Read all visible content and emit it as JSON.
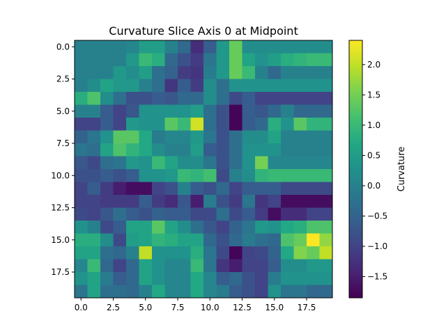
{
  "chart_data": {
    "type": "heatmap",
    "title": "Curvature Slice Axis 0 at Midpoint",
    "xlabel": "",
    "ylabel": "",
    "xlim": [
      -0.5,
      19.5
    ],
    "ylim": [
      19.5,
      -0.5
    ],
    "x_ticks": [
      0.0,
      2.5,
      5.0,
      7.5,
      10.0,
      12.5,
      15.0,
      17.5
    ],
    "y_ticks": [
      0.0,
      2.5,
      5.0,
      7.5,
      10.0,
      12.5,
      15.0,
      17.5
    ],
    "colorbar": {
      "label": "Curvature",
      "range": [
        -1.85,
        2.4
      ],
      "ticks": [
        -1.5,
        -1.0,
        -0.5,
        0.0,
        0.5,
        1.0,
        1.5,
        2.0
      ],
      "colormap": "viridis"
    },
    "grid": false,
    "values": [
      [
        0.0,
        0.0,
        0.0,
        0.0,
        0.1,
        0.5,
        0.5,
        0.0,
        -0.4,
        -1.3,
        -0.6,
        0.4,
        1.4,
        0.2,
        0.2,
        0.2,
        0.2,
        0.2,
        0.2,
        0.2
      ],
      [
        0.0,
        0.0,
        0.0,
        0.0,
        0.4,
        1.0,
        0.8,
        -0.4,
        -0.8,
        -1.1,
        -0.2,
        0.4,
        1.4,
        0.6,
        0.3,
        0.5,
        0.8,
        0.9,
        1.0,
        1.0
      ],
      [
        0.0,
        0.0,
        0.0,
        0.4,
        0.2,
        0.5,
        -0.3,
        -0.5,
        -1.1,
        -1.2,
        -0.1,
        0.4,
        1.4,
        1.0,
        0.0,
        -0.4,
        0.0,
        0.0,
        0.0,
        0.0
      ],
      [
        0.0,
        0.2,
        0.6,
        0.4,
        0.4,
        0.0,
        -0.3,
        -1.2,
        -0.6,
        -1.1,
        0.2,
        -0.3,
        0.3,
        0.3,
        0.3,
        0.3,
        0.3,
        0.3,
        0.3,
        0.3
      ],
      [
        0.8,
        1.2,
        0.2,
        -0.3,
        -0.8,
        -0.8,
        -0.6,
        -0.7,
        -0.4,
        -0.4,
        0.2,
        -0.3,
        -0.9,
        -0.6,
        -1.0,
        -1.0,
        -1.0,
        -1.0,
        -1.0,
        -1.0
      ],
      [
        0.0,
        0.0,
        -0.6,
        -1.0,
        -0.7,
        0.3,
        0.3,
        0.3,
        0.3,
        0.5,
        -0.3,
        -0.8,
        -1.8,
        -0.6,
        -0.7,
        -0.4,
        0.0,
        -0.4,
        -0.4,
        -0.4
      ],
      [
        -1.0,
        -1.0,
        -0.6,
        -1.0,
        0.4,
        0.3,
        0.3,
        1.3,
        1.0,
        2.1,
        -0.3,
        -0.8,
        -1.8,
        -0.6,
        -0.4,
        0.8,
        0.3,
        1.3,
        0.9,
        0.9
      ],
      [
        -0.5,
        -0.2,
        0.3,
        1.3,
        1.3,
        0.7,
        -0.1,
        0.1,
        0.1,
        0.4,
        -0.2,
        -0.8,
        -0.3,
        0.2,
        0.2,
        0.6,
        0.0,
        0.0,
        0.0,
        0.0
      ],
      [
        -0.2,
        -0.3,
        0.6,
        1.2,
        0.9,
        0.7,
        0.2,
        0.0,
        0.0,
        0.5,
        -0.6,
        -0.8,
        -0.3,
        0.3,
        0.3,
        0.3,
        0.0,
        0.0,
        0.0,
        0.0
      ],
      [
        -0.7,
        -0.9,
        -0.3,
        -0.2,
        0.4,
        0.3,
        1.0,
        0.6,
        0.2,
        0.2,
        -0.2,
        -0.8,
        -0.3,
        0.3,
        1.5,
        0.1,
        0.1,
        0.1,
        0.1,
        0.1
      ],
      [
        -0.8,
        -0.8,
        -0.6,
        -0.8,
        -0.6,
        0.3,
        0.3,
        0.4,
        1.0,
        0.9,
        1.1,
        -0.9,
        0.0,
        0.2,
        0.9,
        1.0,
        1.0,
        1.0,
        1.0,
        1.0
      ],
      [
        -1.0,
        -0.6,
        -1.1,
        -1.5,
        -1.7,
        -1.7,
        -1.0,
        -0.8,
        0.0,
        -0.6,
        -0.8,
        -0.4,
        -1.0,
        -0.6,
        -0.6,
        -0.6,
        -0.9,
        -0.9,
        -0.9,
        -0.9
      ],
      [
        -1.0,
        -1.0,
        -1.1,
        -1.1,
        -1.1,
        -0.6,
        -1.1,
        -1.3,
        -0.7,
        -1.5,
        -0.1,
        -0.8,
        -1.1,
        -0.2,
        -1.2,
        -1.0,
        -1.7,
        -1.7,
        -1.7,
        -1.7
      ],
      [
        -0.9,
        -1.0,
        -0.7,
        -0.3,
        -0.6,
        -0.8,
        -0.5,
        -0.6,
        -0.6,
        -0.9,
        -0.9,
        -0.3,
        -0.9,
        -0.6,
        -1.1,
        -1.7,
        -1.3,
        -1.3,
        -1.0,
        -1.0
      ],
      [
        0.3,
        0.0,
        -0.9,
        -0.6,
        0.6,
        0.6,
        1.3,
        0.6,
        0.2,
        -0.3,
        -0.7,
        -1.0,
        -0.5,
        -0.2,
        0.4,
        0.3,
        0.7,
        0.8,
        1.2,
        1.2
      ],
      [
        0.8,
        0.8,
        0.2,
        -0.9,
        0.5,
        0.6,
        0.9,
        0.8,
        0.6,
        0.6,
        -0.4,
        -0.8,
        -0.4,
        -0.1,
        -0.3,
        -0.4,
        1.2,
        1.4,
        2.4,
        1.7
      ],
      [
        0.6,
        0.6,
        -0.3,
        -0.4,
        0.0,
        2.0,
        0.3,
        0.3,
        0.3,
        0.8,
        -0.2,
        -0.9,
        -1.8,
        -1.0,
        -0.9,
        -0.5,
        0.7,
        1.6,
        1.4,
        2.0
      ],
      [
        0.1,
        1.0,
        -0.4,
        -1.0,
        -0.4,
        0.6,
        0.3,
        0.1,
        0.1,
        1.0,
        -0.2,
        -1.2,
        -1.5,
        -1.0,
        -1.0,
        -0.6,
        0.2,
        0.2,
        0.4,
        0.4
      ],
      [
        0.3,
        0.6,
        -0.1,
        -0.6,
        -0.4,
        0.6,
        0.3,
        0.1,
        0.1,
        0.7,
        0.1,
        -0.6,
        -0.4,
        -0.8,
        -1.0,
        -0.1,
        0.3,
        0.3,
        0.3,
        0.3
      ],
      [
        -0.2,
        0.6,
        -0.3,
        -0.3,
        -0.4,
        0.0,
        0.7,
        0.1,
        0.1,
        0.7,
        0.1,
        -0.1,
        -0.6,
        -0.8,
        -1.0,
        0.3,
        -0.2,
        -0.2,
        -0.4,
        -0.4
      ]
    ]
  }
}
